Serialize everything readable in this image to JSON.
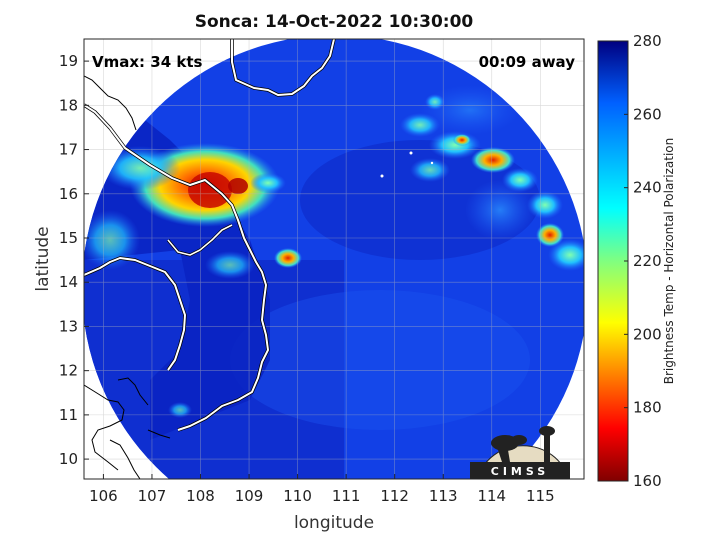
{
  "title": "Sonca: 14-Oct-2022 10:30:00",
  "vmax_label": "Vmax: 34 kts",
  "time_label": "00:09 away",
  "map": {
    "xlabel": "longitude",
    "ylabel": "latitude",
    "lon_range": [
      105.6,
      115.9
    ],
    "lat_range": [
      9.55,
      19.5
    ],
    "lon_ticks": [
      "106",
      "107",
      "108",
      "109",
      "110",
      "111",
      "112",
      "113",
      "114",
      "115"
    ],
    "lat_ticks": [
      "10",
      "11",
      "12",
      "13",
      "14",
      "15",
      "16",
      "17",
      "18",
      "19"
    ],
    "grid": true,
    "background_color": "#0a2ad8",
    "outside_color": "#ffffff"
  },
  "colorbar": {
    "label": "Brightness Temp - Horizontal Polarization",
    "ticks": [
      "280",
      "260",
      "240",
      "220",
      "200",
      "180",
      "160"
    ],
    "range": [
      160,
      280
    ],
    "colormap": "jet"
  },
  "logo": {
    "text": "CIMSS"
  }
}
